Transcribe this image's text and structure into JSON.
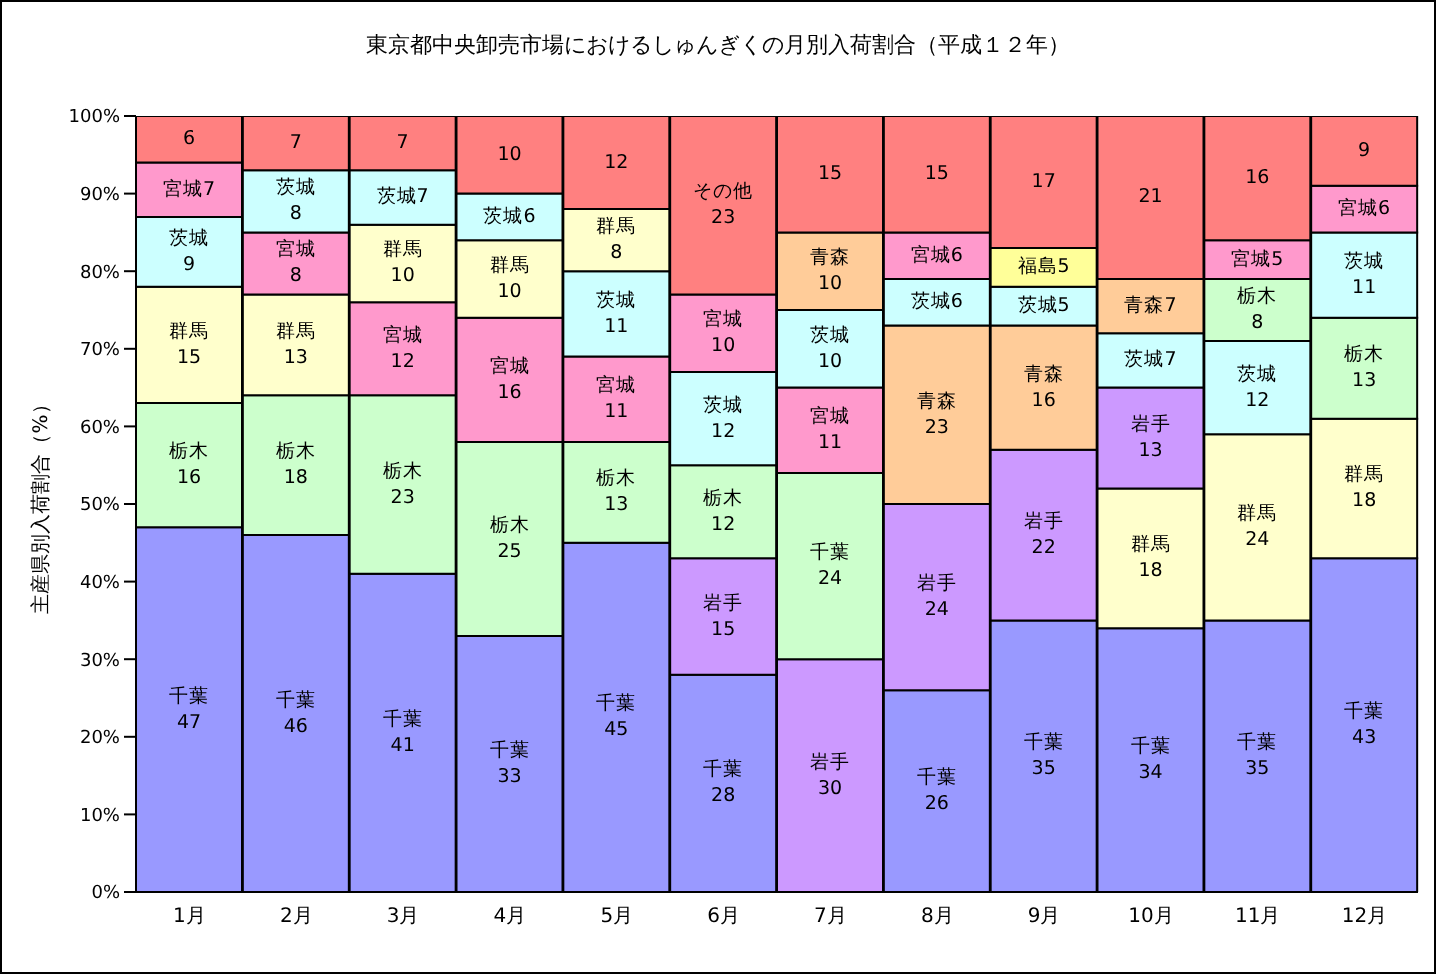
{
  "chart_data": {
    "type": "bar",
    "stacked": true,
    "title": "東京都中央卸売市場におけるしゅんぎくの月別入荷割合（平成１２年）",
    "ylabel": "主産県別入荷割合（%）",
    "categories": [
      "1月",
      "2月",
      "3月",
      "4月",
      "5月",
      "6月",
      "7月",
      "8月",
      "9月",
      "10月",
      "11月",
      "12月"
    ],
    "ylim": [
      0,
      100
    ],
    "yticks": [
      {
        "value": 0,
        "label": "0%"
      },
      {
        "value": 10,
        "label": "10%"
      },
      {
        "value": 20,
        "label": "20%"
      },
      {
        "value": 30,
        "label": "30%"
      },
      {
        "value": 40,
        "label": "40%"
      },
      {
        "value": 50,
        "label": "50%"
      },
      {
        "value": 60,
        "label": "60%"
      },
      {
        "value": 70,
        "label": "70%"
      },
      {
        "value": 80,
        "label": "80%"
      },
      {
        "value": 90,
        "label": "90%"
      },
      {
        "value": 100,
        "label": "100%"
      }
    ],
    "grid": false,
    "legend": false,
    "series": [
      {
        "values": [
          47,
          46,
          41,
          33,
          45,
          28,
          30,
          26,
          35,
          34,
          35,
          43
        ],
        "colors": [
          "#9999ff",
          "#9999ff",
          "#9999ff",
          "#9999ff",
          "#9999ff",
          "#9999ff",
          "#cc99ff",
          "#9999ff",
          "#9999ff",
          "#9999ff",
          "#9999ff",
          "#9999ff"
        ],
        "value_labels": [
          "千葉\n47",
          "千葉\n46",
          "千葉\n41",
          "千葉\n33",
          "千葉\n45",
          "千葉\n28",
          "岩手\n30",
          "千葉\n26",
          "千葉\n35",
          "千葉\n34",
          "千葉\n35",
          "千葉\n43"
        ]
      },
      {
        "values": [
          16,
          18,
          23,
          25,
          13,
          15,
          24,
          24,
          22,
          18,
          24,
          18
        ],
        "colors": [
          "#ccffcc",
          "#ccffcc",
          "#ccffcc",
          "#ccffcc",
          "#ccffcc",
          "#cc99ff",
          "#ccffcc",
          "#cc99ff",
          "#cc99ff",
          "#ffffcc",
          "#ffffcc",
          "#ffffcc"
        ],
        "value_labels": [
          "栃木\n16",
          "栃木\n18",
          "栃木\n23",
          "栃木\n25",
          "栃木\n13",
          "岩手\n15",
          "千葉\n24",
          "岩手\n24",
          "岩手\n22",
          "群馬\n18",
          "群馬\n24",
          "群馬\n18"
        ]
      },
      {
        "values": [
          15,
          13,
          12,
          16,
          11,
          12,
          11,
          23,
          16,
          13,
          12,
          13
        ],
        "colors": [
          "#ffffcc",
          "#ffffcc",
          "#ff99cc",
          "#ff99cc",
          "#ff99cc",
          "#ccffcc",
          "#ff99cc",
          "#ffcc99",
          "#ffcc99",
          "#cc99ff",
          "#ccffff",
          "#ccffcc"
        ],
        "value_labels": [
          "群馬\n15",
          "群馬\n13",
          "宮城\n12",
          "宮城\n16",
          "宮城\n11",
          "栃木\n12",
          "宮城\n11",
          "青森\n23",
          "青森\n16",
          "岩手\n13",
          "茨城\n12",
          "栃木\n13"
        ]
      },
      {
        "values": [
          9,
          8,
          10,
          10,
          11,
          12,
          10,
          6,
          5,
          7,
          8,
          11
        ],
        "colors": [
          "#ccffff",
          "#ff99cc",
          "#ffffcc",
          "#ffffcc",
          "#ccffff",
          "#ccffff",
          "#ccffff",
          "#ccffff",
          "#ccffff",
          "#ccffff",
          "#ccffcc",
          "#ccffff"
        ],
        "value_labels": [
          "茨城\n9",
          "宮城\n8",
          "群馬\n10",
          "群馬\n10",
          "茨城\n11",
          "茨城\n12",
          "茨城\n10",
          "茨城6",
          "茨城5",
          "茨城7",
          "栃木\n8",
          "茨城\n11"
        ]
      },
      {
        "values": [
          7,
          8,
          7,
          6,
          8,
          10,
          10,
          6,
          5,
          7,
          5,
          6
        ],
        "colors": [
          "#ff99cc",
          "#ccffff",
          "#ccffff",
          "#ccffff",
          "#ffffcc",
          "#ff99cc",
          "#ffcc99",
          "#ff99cc",
          "#ffff99",
          "#ffcc99",
          "#ff99cc",
          "#ff99cc"
        ],
        "value_labels": [
          "宮城7",
          "茨城\n8",
          "茨城7",
          "茨城6",
          "群馬\n8",
          "宮城\n10",
          "青森\n10",
          "宮城6",
          "福島5",
          "青森7",
          "宮城5",
          "宮城6"
        ]
      },
      {
        "values": [
          6,
          7,
          7,
          10,
          12,
          23,
          15,
          15,
          17,
          21,
          16,
          9
        ],
        "colors": [
          "#ff8080",
          "#ff8080",
          "#ff8080",
          "#ff8080",
          "#ff8080",
          "#ff8080",
          "#ff8080",
          "#ff8080",
          "#ff8080",
          "#ff8080",
          "#ff8080",
          "#ff8080"
        ],
        "value_labels": [
          "6",
          "7",
          "7",
          "10",
          "12",
          "その他\n23",
          "15",
          "15",
          "17",
          "21",
          "16",
          "9"
        ]
      }
    ]
  }
}
